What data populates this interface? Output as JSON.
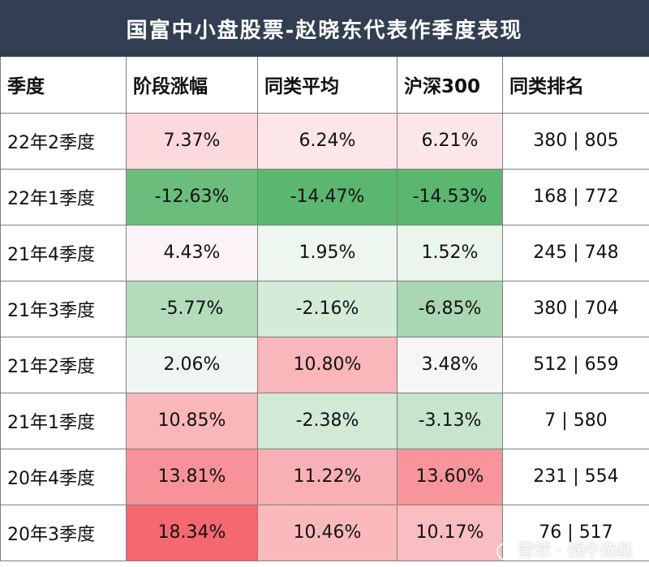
{
  "title": "国富中小盘股票-赵晓东代表作季度表现",
  "headers": [
    "季度",
    "阶段涨幅",
    "同类平均",
    "沪深300",
    "同类排名"
  ],
  "rows": [
    {
      "label": "22年2季度",
      "values": [
        "7.37%",
        "6.24%",
        "6.21%"
      ],
      "rank": "380 | 805",
      "colors": [
        "#fcd9dc",
        "#fde6e8",
        "#fde6e8"
      ]
    },
    {
      "label": "22年1季度",
      "values": [
        "-12.63%",
        "-14.47%",
        "-14.53%"
      ],
      "rank": "168 | 772",
      "colors": [
        "#6bbd7c",
        "#5bb66f",
        "#5bb66f"
      ]
    },
    {
      "label": "21年4季度",
      "values": [
        "4.43%",
        "1.95%",
        "1.52%"
      ],
      "rank": "245 | 748",
      "colors": [
        "#fbf3f7",
        "#eef6f0",
        "#eaf5ec"
      ]
    },
    {
      "label": "21年3季度",
      "values": [
        "-5.77%",
        "-2.16%",
        "-6.85%"
      ],
      "rank": "380 | 704",
      "colors": [
        "#b3dcbc",
        "#d4ebd8",
        "#a8d7b2"
      ]
    },
    {
      "label": "21年2季度",
      "values": [
        "2.06%",
        "10.80%",
        "3.48%"
      ],
      "rank": "512 | 659",
      "colors": [
        "#eff6f1",
        "#f9b6bb",
        "#f7f5f7"
      ]
    },
    {
      "label": "21年1季度",
      "values": [
        "10.85%",
        "-2.38%",
        "-3.13%"
      ],
      "rank": "7 | 580",
      "colors": [
        "#f9b6bb",
        "#d2e9d6",
        "#c7e4cd"
      ]
    },
    {
      "label": "20年4季度",
      "values": [
        "13.81%",
        "11.22%",
        "13.60%"
      ],
      "rank": "231 | 554",
      "colors": [
        "#f79298",
        "#f9b0b5",
        "#f7959b"
      ]
    },
    {
      "label": "20年3季度",
      "values": [
        "18.34%",
        "10.46%",
        "10.17%"
      ],
      "rank": "76 | 517",
      "colors": [
        "#f56870",
        "#fab9bd",
        "#fabdc1"
      ]
    }
  ],
  "watermark": "雪球 · 蜗牛选基"
}
